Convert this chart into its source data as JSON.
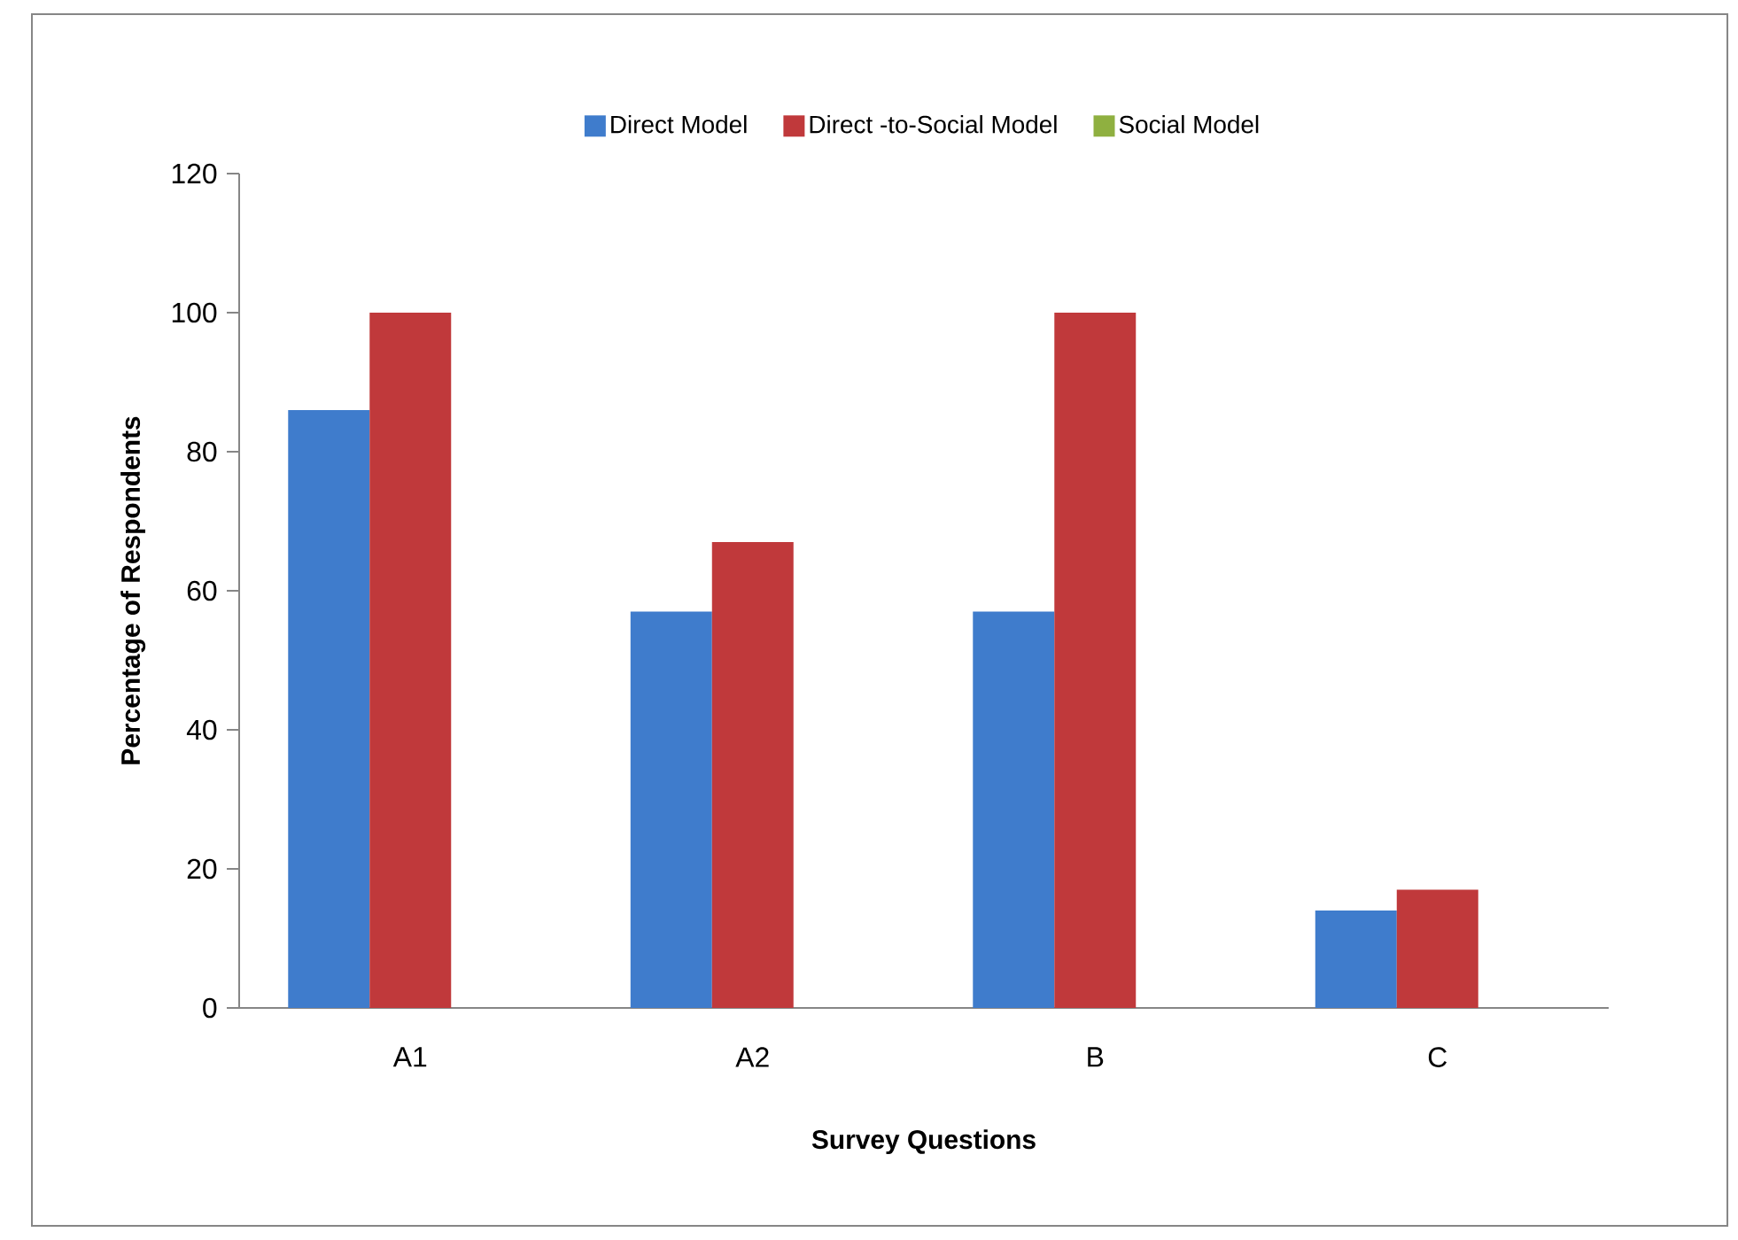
{
  "chart_data": {
    "type": "bar",
    "xlabel": "Survey Questions",
    "ylabel": "Percentage of Respondents",
    "categories": [
      "A1",
      "A2",
      "B",
      "C"
    ],
    "series": [
      {
        "name": "Direct Model",
        "color": "#3f7ccc",
        "values": [
          86,
          57,
          57,
          14
        ]
      },
      {
        "name": "Direct -to-Social Model",
        "color": "#c0393b",
        "values": [
          100,
          67,
          100,
          17
        ]
      },
      {
        "name": "Social Model",
        "color": "#8fb040",
        "values": [
          0,
          0,
          0,
          0
        ]
      }
    ],
    "ylim": [
      0,
      120
    ],
    "yticks": [
      0,
      20,
      40,
      60,
      80,
      100,
      120
    ],
    "grid": false,
    "legend": "top"
  }
}
